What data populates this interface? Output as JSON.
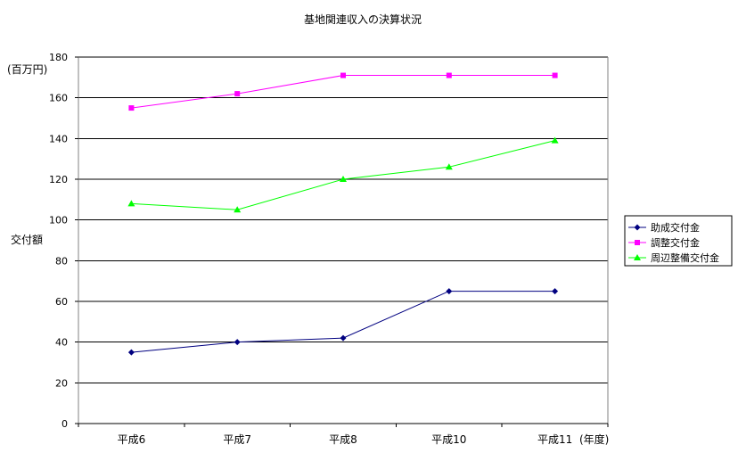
{
  "chart_data": {
    "type": "line",
    "title": "基地関連収入の決算状況",
    "ylabel": "交付額",
    "yunit": "(百万円)",
    "xunit": "(年度)",
    "categories": [
      "平成6",
      "平成7",
      "平成8",
      "平成10",
      "平成11"
    ],
    "ylim": [
      0,
      180
    ],
    "yticks": [
      0,
      20,
      40,
      60,
      80,
      100,
      120,
      140,
      160,
      180
    ],
    "grid": true,
    "legend_position": "right",
    "series": [
      {
        "name": "助成交付金",
        "values": [
          35,
          40,
          42,
          65,
          65
        ],
        "color": "#000080",
        "marker": "diamond"
      },
      {
        "name": "調整交付金",
        "values": [
          155,
          162,
          171,
          171,
          171
        ],
        "color": "#ff00ff",
        "marker": "square"
      },
      {
        "name": "周辺整備交付金",
        "values": [
          108,
          105,
          120,
          126,
          139
        ],
        "color": "#00ff00",
        "marker": "triangle"
      }
    ]
  }
}
